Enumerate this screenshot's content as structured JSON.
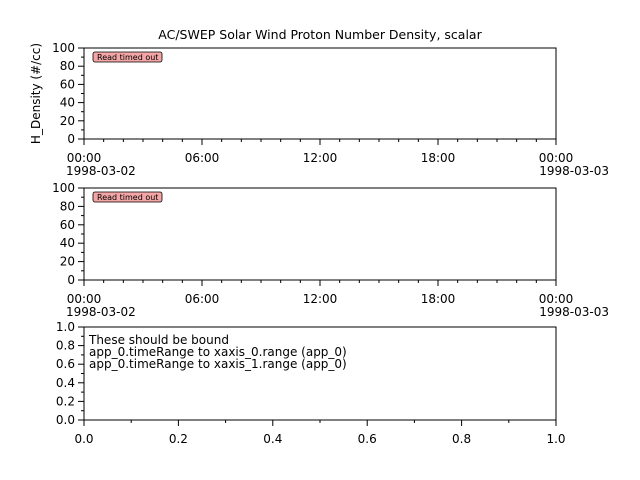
{
  "chart_data": [
    {
      "type": "line",
      "title": "AC/SWEP  Solar Wind Proton Number Density, scalar",
      "ylabel": "H_Density (#/cc)",
      "xlabel": "",
      "ylim": [
        0,
        100
      ],
      "y_ticks": [
        "0",
        "20",
        "40",
        "60",
        "80",
        "100"
      ],
      "x_ticks": [
        {
          "time": "00:00",
          "date": "1998-03-02"
        },
        {
          "time": "06:00",
          "date": ""
        },
        {
          "time": "12:00",
          "date": ""
        },
        {
          "time": "18:00",
          "date": ""
        },
        {
          "time": "00:00",
          "date": "1998-03-03"
        }
      ],
      "xlim": [
        "1998-03-02 00:00",
        "1998-03-03 00:00"
      ],
      "series": [],
      "annotations": [
        "Read timed out"
      ],
      "grid": false
    },
    {
      "type": "line",
      "title": "",
      "ylabel": "",
      "xlabel": "",
      "ylim": [
        0,
        100
      ],
      "y_ticks": [
        "0",
        "20",
        "40",
        "60",
        "80",
        "100"
      ],
      "x_ticks": [
        {
          "time": "00:00",
          "date": "1998-03-02"
        },
        {
          "time": "06:00",
          "date": ""
        },
        {
          "time": "12:00",
          "date": ""
        },
        {
          "time": "18:00",
          "date": ""
        },
        {
          "time": "00:00",
          "date": "1998-03-03"
        }
      ],
      "xlim": [
        "1998-03-02 00:00",
        "1998-03-03 00:00"
      ],
      "series": [],
      "annotations": [
        "Read timed out"
      ],
      "grid": false
    },
    {
      "type": "scatter",
      "title": "",
      "ylabel": "",
      "xlabel": "",
      "xlim": [
        0,
        1
      ],
      "ylim": [
        0,
        1
      ],
      "x_ticks": [
        "0.0",
        "0.2",
        "0.4",
        "0.6",
        "0.8",
        "1.0"
      ],
      "y_ticks": [
        "0.0",
        "0.2",
        "0.4",
        "0.6",
        "0.8",
        "1.0"
      ],
      "series": [],
      "annotations": [
        "These should be bound",
        "app_0.timeRange to xaxis_0.range  (app_0)",
        "app_0.timeRange to xaxis_1.range  (app_0)"
      ],
      "grid": false
    }
  ],
  "colors": {
    "badge_fill": "#f4a6a6",
    "axis": "#000000",
    "background": "#ffffff"
  }
}
